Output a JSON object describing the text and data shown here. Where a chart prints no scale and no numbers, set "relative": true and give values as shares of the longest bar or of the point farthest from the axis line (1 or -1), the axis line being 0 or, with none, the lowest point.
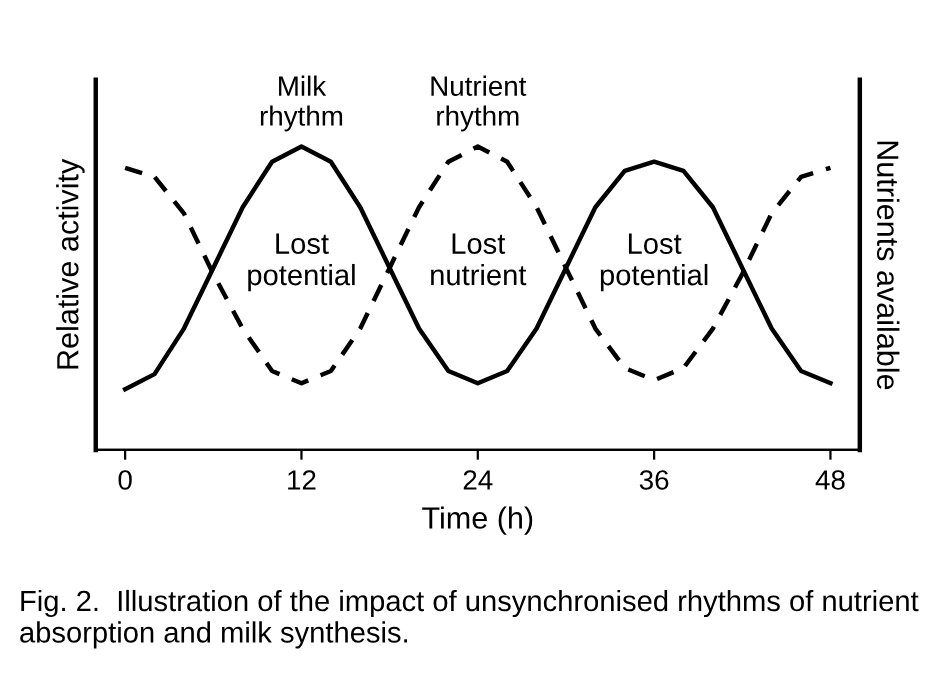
{
  "chart_data": {
    "type": "line",
    "relative": true,
    "xlabel": "Time (h)",
    "ylabel": "Relative activity",
    "y2label": "Nutrients available",
    "x": [
      0,
      2,
      4,
      6,
      8,
      10,
      12,
      14,
      16,
      18,
      20,
      22,
      24,
      26,
      28,
      30,
      32,
      34,
      36,
      38,
      40,
      42,
      44,
      46,
      48
    ],
    "xlim": [
      -2,
      50
    ],
    "xticks": [
      0,
      12,
      24,
      36,
      48
    ],
    "grid": false,
    "legend": false,
    "series": [
      {
        "name": "Milk rhythm",
        "color": "#000000",
        "line_style": "solid",
        "values": [
          0.2,
          0.25,
          0.4,
          0.6,
          0.8,
          0.95,
          1.0,
          0.95,
          0.8,
          0.6,
          0.4,
          0.26,
          0.22,
          0.26,
          0.4,
          0.6,
          0.8,
          0.92,
          0.95,
          0.92,
          0.8,
          0.6,
          0.4,
          0.26,
          0.22
        ]
      },
      {
        "name": "Nutrient rhythm",
        "color": "#000000",
        "line_style": "dashed",
        "values": [
          0.93,
          0.9,
          0.78,
          0.58,
          0.4,
          0.26,
          0.22,
          0.26,
          0.4,
          0.6,
          0.8,
          0.95,
          1.0,
          0.95,
          0.8,
          0.6,
          0.4,
          0.27,
          0.23,
          0.27,
          0.4,
          0.58,
          0.78,
          0.9,
          0.93
        ]
      }
    ],
    "annotations": [
      "Lost\npotential",
      "Lost\nnutrient",
      "Lost\npotential",
      "Fig. 2.  Illustration of the impact of unsynchronised rhythms of nutrient absorption and milk synthesis."
    ]
  }
}
